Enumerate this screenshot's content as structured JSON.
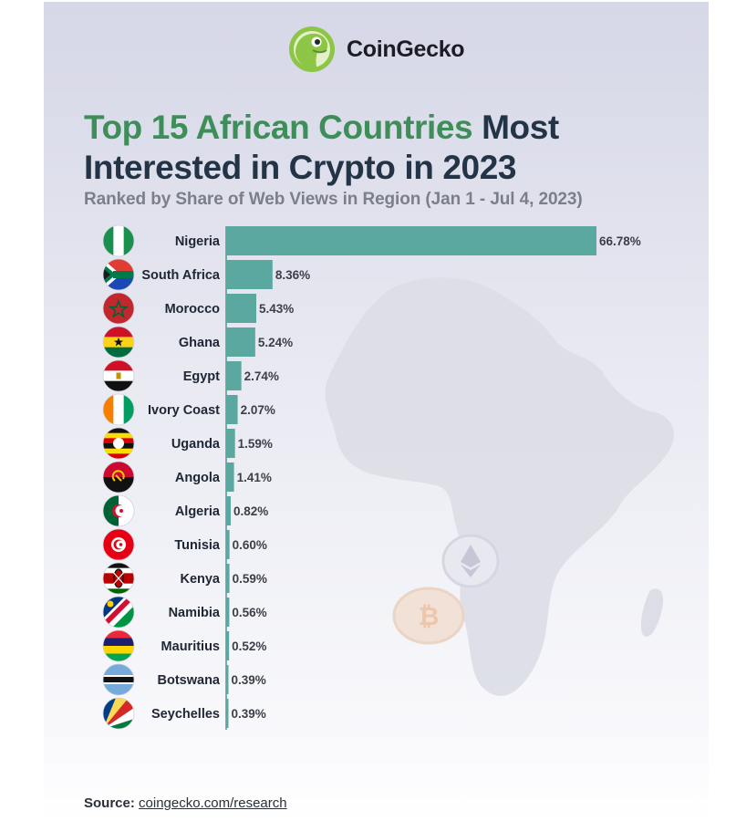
{
  "brand": {
    "name": "CoinGecko",
    "logo_icon": "gecko-logo-icon",
    "accent": "#8dc647"
  },
  "title": {
    "highlight": "Top 15 African Countries",
    "rest": "Most",
    "line2": "Interested in Crypto in 2023"
  },
  "subtitle": "Ranked by Share of Web Views in Region (Jan 1 - Jul 4, 2023)",
  "source": {
    "label": "Source:",
    "link": "coingecko.com/research"
  },
  "colors": {
    "bar": "#5ba8a0",
    "title_dark": "#243447",
    "title_green": "#3e8e5a",
    "label": "#1f2633"
  },
  "chart_data": {
    "type": "bar",
    "orientation": "horizontal",
    "categories": [
      "Nigeria",
      "South Africa",
      "Morocco",
      "Ghana",
      "Egypt",
      "Ivory Coast",
      "Uganda",
      "Angola",
      "Algeria",
      "Tunisia",
      "Kenya",
      "Namibia",
      "Mauritius",
      "Botswana",
      "Seychelles"
    ],
    "values": [
      66.78,
      8.36,
      5.43,
      5.24,
      2.74,
      2.07,
      1.59,
      1.41,
      0.82,
      0.6,
      0.59,
      0.56,
      0.52,
      0.39,
      0.39
    ],
    "value_labels": [
      "66.78%",
      "8.36%",
      "5.43%",
      "5.24%",
      "2.74%",
      "2.07%",
      "1.59%",
      "1.41%",
      "0.82%",
      "0.60%",
      "0.59%",
      "0.56%",
      "0.52%",
      "0.39%",
      "0.39%"
    ],
    "flag_icons": [
      "nigeria-flag-icon",
      "south-africa-flag-icon",
      "morocco-flag-icon",
      "ghana-flag-icon",
      "egypt-flag-icon",
      "ivory-coast-flag-icon",
      "uganda-flag-icon",
      "angola-flag-icon",
      "algeria-flag-icon",
      "tunisia-flag-icon",
      "kenya-flag-icon",
      "namibia-flag-icon",
      "mauritius-flag-icon",
      "botswana-flag-icon",
      "seychelles-flag-icon"
    ],
    "title": "Top 15 African Countries Most Interested in Crypto in 2023",
    "subtitle": "Ranked by Share of Web Views in Region (Jan 1 - Jul 4, 2023)",
    "xlabel": "",
    "ylabel": "",
    "xlim": [
      0,
      66.78
    ],
    "grid": false,
    "legend": "none"
  }
}
